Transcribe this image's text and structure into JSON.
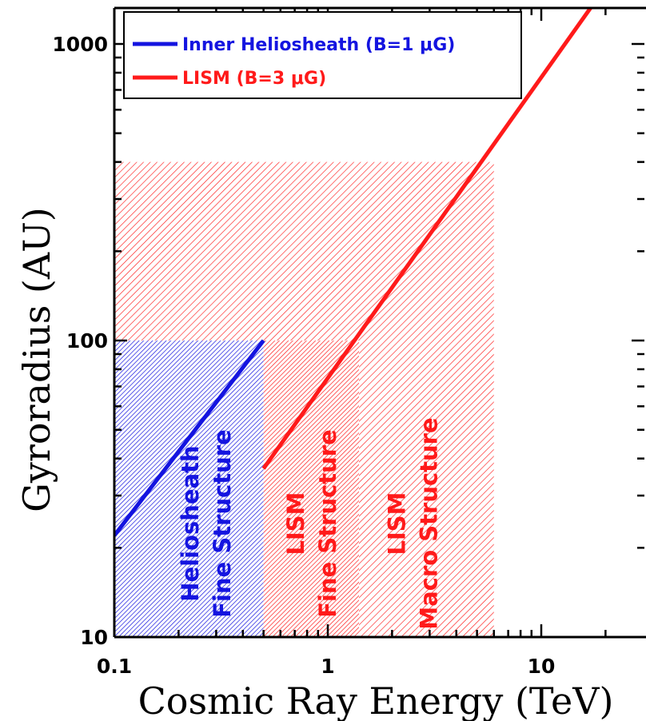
{
  "chart_data": {
    "type": "line",
    "xlabel": "Cosmic Ray Energy (TeV)",
    "ylabel": "Gyroradius (AU)",
    "xscale": "log",
    "yscale": "log",
    "xlim": [
      0.1,
      25
    ],
    "ylim": [
      10,
      1400
    ],
    "x_ticks": [
      {
        "value": 0.1,
        "label": "0.1"
      },
      {
        "value": 1,
        "label": "1"
      },
      {
        "value": 10,
        "label": "10"
      }
    ],
    "y_ticks": [
      {
        "value": 10,
        "label": "10"
      },
      {
        "value": 100,
        "label": "100"
      },
      {
        "value": 1000,
        "label": "1000"
      }
    ],
    "legend_position": "top-left",
    "series": [
      {
        "name": "Inner Heliosheath (B=1 μG)",
        "color": "#1414e0",
        "x": [
          0.1,
          0.5
        ],
        "y": [
          22,
          100
        ]
      },
      {
        "name": "LISM (B=3  μG)",
        "color": "#ff1a1a",
        "x": [
          0.5,
          18
        ],
        "y": [
          37,
          1400
        ]
      }
    ],
    "regions": [
      {
        "lines": [
          "LISM",
          "Macro Structure"
        ],
        "color": "#ff1a1a",
        "x": [
          0.1,
          6
        ],
        "y": [
          10,
          400
        ],
        "label_x": 2.5
      },
      {
        "lines": [
          "LISM",
          "Fine Structure"
        ],
        "color": "#ff1a1a",
        "x": [
          0.5,
          1.4
        ],
        "y": [
          10,
          100
        ],
        "label_x": 0.84
      },
      {
        "lines": [
          "Heliosheath",
          "Fine Structure"
        ],
        "color": "#1414e0",
        "x": [
          0.1,
          0.5
        ],
        "y": [
          10,
          100
        ],
        "label_x": 0.27
      }
    ]
  }
}
